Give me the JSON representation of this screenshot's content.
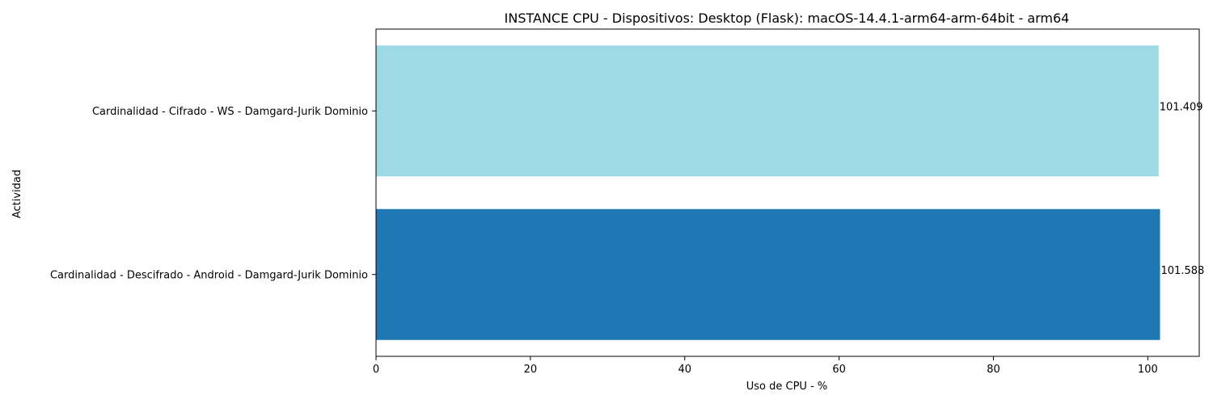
{
  "chart_data": {
    "type": "bar",
    "orientation": "horizontal",
    "title": "INSTANCE CPU - Dispositivos: Desktop (Flask): macOS-14.4.1-arm64-arm-64bit - arm64",
    "xlabel": "Uso de CPU - %",
    "ylabel": "Actividad",
    "xlim": [
      0,
      106.67
    ],
    "xticks": [
      "0",
      "20",
      "40",
      "60",
      "80",
      "100"
    ],
    "grid": false,
    "categories": [
      "Cardinalidad - Cifrado - WS - Damgard-Jurik Dominio",
      "Cardinalidad - Descifrado - Android - Damgard-Jurik Dominio"
    ],
    "values": [
      101.409,
      101.588
    ],
    "value_labels": [
      "101.409",
      "101.588"
    ],
    "colors": [
      "#9edae5",
      "#1f77b4"
    ]
  }
}
